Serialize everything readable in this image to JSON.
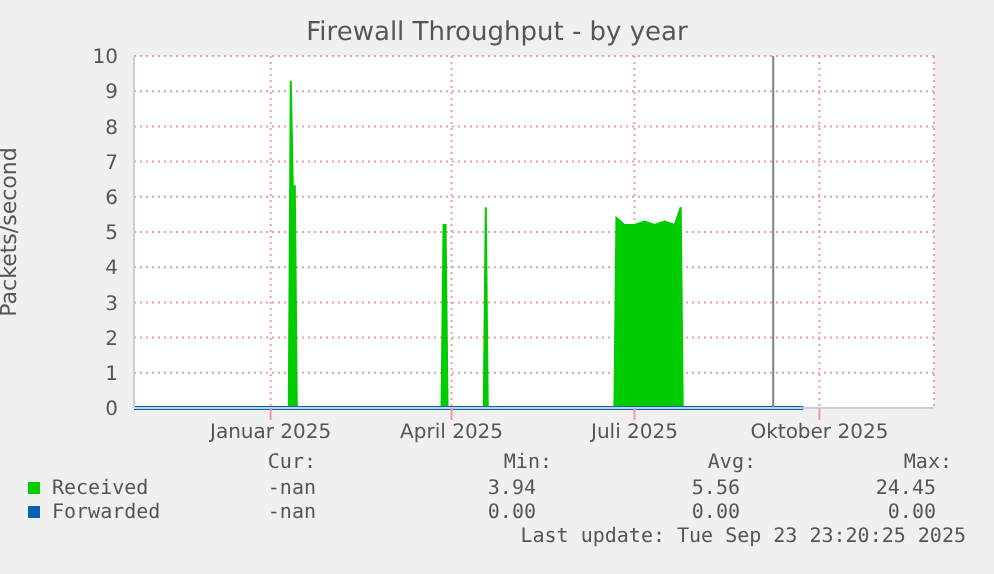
{
  "chart_data": {
    "type": "area",
    "title": "Firewall Throughput - by year",
    "ylabel": "Packets/second",
    "x": [
      "2024-10-25",
      "2025-01-10",
      "2025-01-11",
      "2025-01-12",
      "2025-01-13",
      "2025-01-14",
      "2025-03-27",
      "2025-03-28",
      "2025-03-29",
      "2025-03-30",
      "2025-04-17",
      "2025-04-18",
      "2025-04-19",
      "2025-06-21",
      "2025-06-22",
      "2025-06-26",
      "2025-07-01",
      "2025-07-06",
      "2025-07-11",
      "2025-07-16",
      "2025-07-21",
      "2025-07-24",
      "2025-07-25",
      "2025-09-23"
    ],
    "series": [
      {
        "name": "Received",
        "color": "#00cc00",
        "values": [
          0,
          0,
          9.3,
          6.3,
          6.3,
          0,
          0,
          5.2,
          5.2,
          0,
          0,
          5.7,
          0,
          0,
          5.4,
          5.2,
          5.2,
          5.3,
          5.2,
          5.3,
          5.2,
          5.7,
          0,
          0
        ]
      },
      {
        "name": "Forwarded",
        "type": "line",
        "color": "#0066b3",
        "values": [
          0,
          0,
          0,
          0,
          0,
          0,
          0,
          0,
          0,
          0,
          0,
          0,
          0,
          0,
          0,
          0,
          0,
          0,
          0,
          0,
          0,
          0,
          0,
          0
        ]
      }
    ],
    "xlim": [
      "2024-10-25",
      "2025-11-27"
    ],
    "xticks": [
      {
        "value": "2025-01-01",
        "label": "Januar 2025"
      },
      {
        "value": "2025-04-01",
        "label": "April 2025"
      },
      {
        "value": "2025-07-01",
        "label": "Juli 2025"
      },
      {
        "value": "2025-10-01",
        "label": "Oktober 2025"
      }
    ],
    "ylim": [
      0,
      10
    ],
    "yticks": [
      0,
      1,
      2,
      3,
      4,
      5,
      6,
      7,
      8,
      9,
      10
    ],
    "grid": true,
    "legend": "bottom",
    "ref_lines": [
      {
        "axis": "x",
        "value": "2025-09-08",
        "color": "#808080"
      }
    ],
    "annotations": [
      "Cur:",
      "Min:",
      "Avg:",
      "Max:",
      "-nan",
      "3.94",
      "5.56",
      "24.45",
      "-nan",
      "0.00",
      "0.00",
      "0.00",
      "Last update: Tue Sep 23 23:20:25 2025"
    ]
  }
}
